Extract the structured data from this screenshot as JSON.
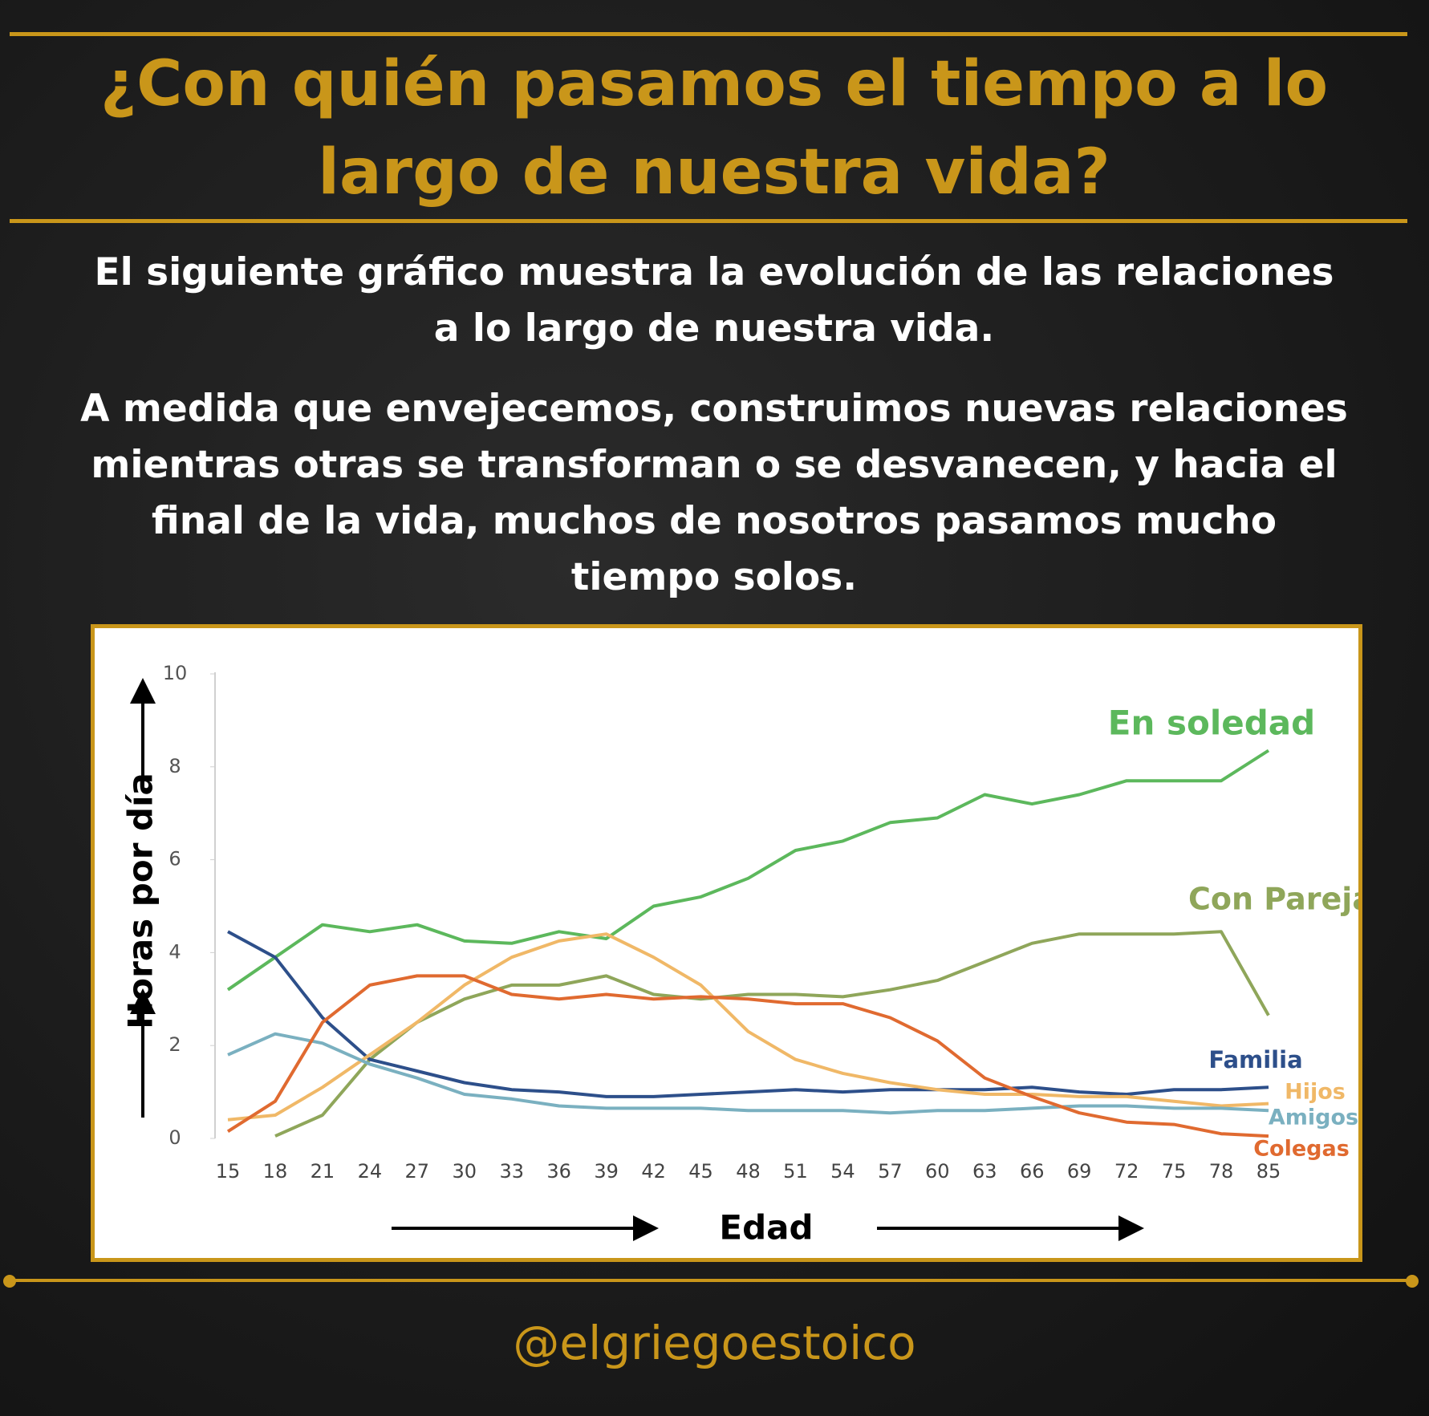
{
  "header": {
    "title": "¿Con quién pasamos el tiempo a lo largo de nuestra vida?"
  },
  "paragraphs": [
    "El siguiente gráfico muestra la evolución de las relaciones a lo largo de nuestra vida.",
    "A medida que envejecemos, construimos nuevas relaciones mientras otras se transforman o se desvanecen, y hacia el final de la vida, muchos de nosotros pasamos mucho tiempo solos."
  ],
  "chart_data": {
    "type": "line",
    "ylabel": "Horas por día",
    "xlabel": "Edad",
    "categories": [
      "15",
      "18",
      "21",
      "24",
      "27",
      "30",
      "33",
      "36",
      "39",
      "42",
      "45",
      "48",
      "51",
      "54",
      "57",
      "60",
      "63",
      "66",
      "69",
      "72",
      "75",
      "78",
      "85"
    ],
    "ylim": [
      0,
      10
    ],
    "yticks": [
      0,
      2,
      4,
      6,
      8,
      10
    ],
    "series": [
      {
        "name": "En soledad",
        "color": "#5cb85c",
        "values": [
          3.2,
          3.9,
          4.6,
          4.45,
          4.6,
          4.25,
          4.2,
          4.45,
          4.3,
          5.0,
          5.2,
          5.6,
          6.2,
          6.4,
          6.8,
          6.9,
          7.4,
          7.2,
          7.4,
          7.7,
          7.7,
          7.7,
          8.35
        ]
      },
      {
        "name": "Con Pareja",
        "color": "#8fa65a",
        "values": [
          null,
          0.05,
          0.5,
          1.7,
          2.5,
          3.0,
          3.3,
          3.3,
          3.5,
          3.1,
          3.0,
          3.1,
          3.1,
          3.05,
          3.2,
          3.4,
          3.8,
          4.2,
          4.4,
          4.4,
          4.4,
          4.45,
          2.65
        ]
      },
      {
        "name": "Familia",
        "color": "#2d4f8a",
        "values": [
          4.45,
          3.9,
          2.6,
          1.7,
          1.45,
          1.2,
          1.05,
          1.0,
          0.9,
          0.9,
          0.95,
          1.0,
          1.05,
          1.0,
          1.05,
          1.05,
          1.05,
          1.1,
          1.0,
          0.95,
          1.05,
          1.05,
          1.1
        ]
      },
      {
        "name": "Hijos",
        "color": "#f0b867",
        "values": [
          0.4,
          0.5,
          1.1,
          1.8,
          2.5,
          3.3,
          3.9,
          4.25,
          4.4,
          3.9,
          3.3,
          2.3,
          1.7,
          1.4,
          1.2,
          1.05,
          0.95,
          0.95,
          0.9,
          0.9,
          0.8,
          0.7,
          0.75
        ]
      },
      {
        "name": "Amigos",
        "color": "#7ab0c0",
        "values": [
          1.8,
          2.25,
          2.05,
          1.6,
          1.3,
          0.95,
          0.85,
          0.7,
          0.65,
          0.65,
          0.65,
          0.6,
          0.6,
          0.6,
          0.55,
          0.6,
          0.6,
          0.65,
          0.7,
          0.7,
          0.65,
          0.65,
          0.6
        ]
      },
      {
        "name": "Colegas",
        "color": "#e06a30",
        "values": [
          0.15,
          0.8,
          2.5,
          3.3,
          3.5,
          3.5,
          3.1,
          3.0,
          3.1,
          3.0,
          3.05,
          3.0,
          2.9,
          2.9,
          2.6,
          2.1,
          1.3,
          0.9,
          0.55,
          0.35,
          0.3,
          0.1,
          0.05
        ]
      }
    ]
  },
  "footer": {
    "handle": "@elgriegoestoico"
  }
}
